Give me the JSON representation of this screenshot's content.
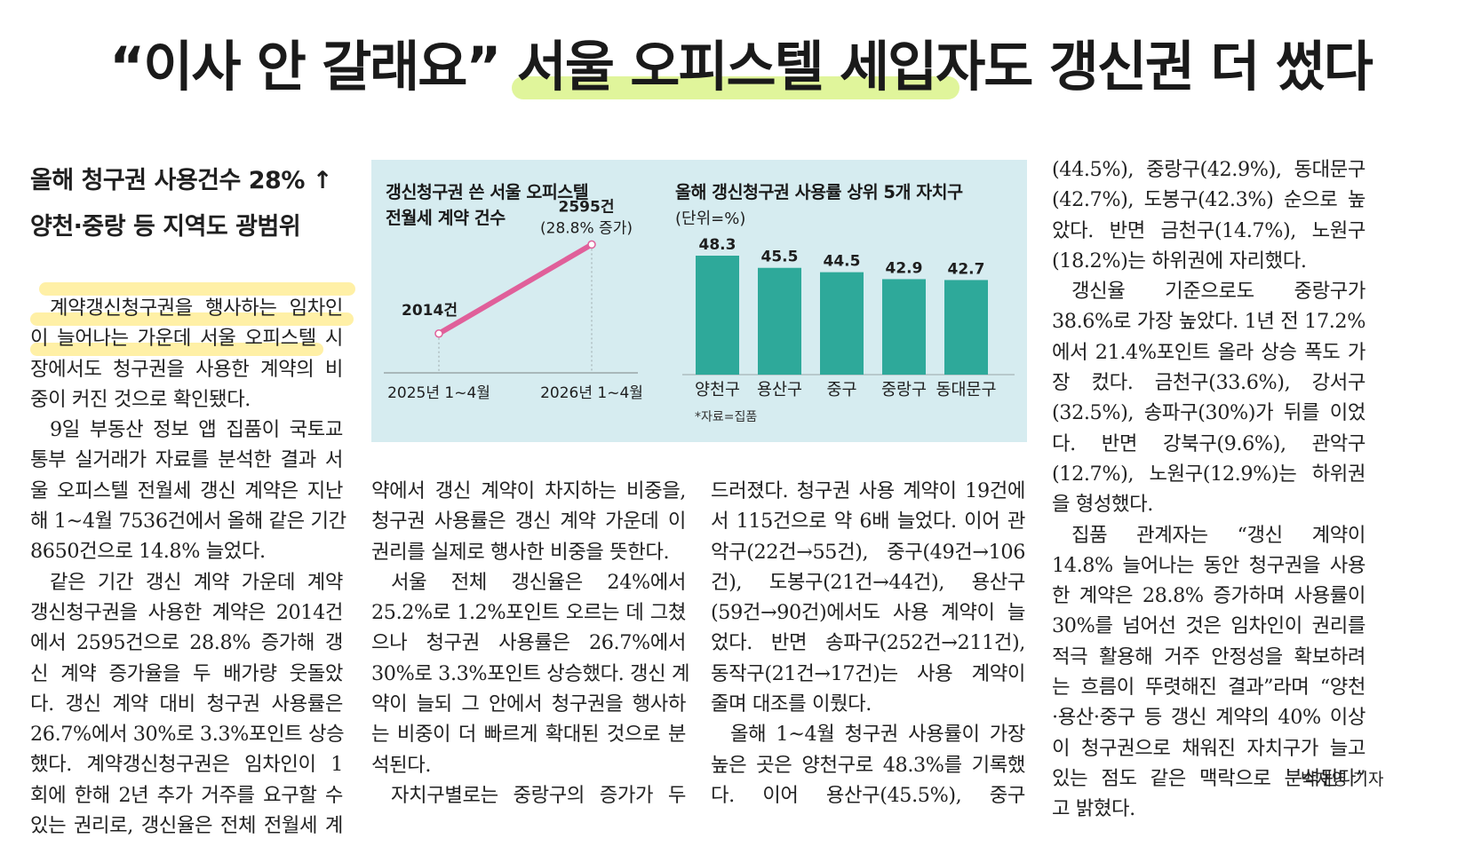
{
  "headline": "“이사 안 갈래요” 서울 오피스텔 세입자도 갱신권 더 썼다",
  "subhead": [
    "올해 청구권 사용건수 28% ↑",
    "양천·중랑 등 지역도 광범위"
  ],
  "col1": [
    "계약갱신청구권을 행사하는 임차인",
    "이 늘어나는 가운데 서울 오피스텔 시",
    "장에서도 청구권을 사용한 계약의 비",
    "중이 커진 것으로 확인됐다.",
    "9일 부동산 정보 앱 집품이 국토교",
    "통부 실거래가 자료를 분석한 결과 서",
    "울 오피스텔 전월세 갱신 계약은 지난",
    "해 1~4월 7536건에서 올해 같은 기간",
    "8650건으로 14.8% 늘었다.",
    "같은 기간 갱신 계약 가운데 계약",
    "갱신청구권을 사용한 계약은 2014건",
    "에서 2595건으로 28.8% 증가해 갱",
    "신 계약 증가율을 두 배가량 웃돌았",
    "다. 갱신 계약 대비 청구권 사용률은",
    "26.7%에서 30%로 3.3%포인트 상승",
    "했다. 계약갱신청구권은 임차인이 1",
    "회에 한해 2년 추가 거주를 요구할 수",
    "있는 권리로, 갱신율은 전체 전월세 계"
  ],
  "col2": [
    "약에서 갱신 계약이 차지하는 비중을,",
    "청구권 사용률은 갱신 계약 가운데 이",
    "권리를 실제로 행사한 비중을 뜻한다.",
    "서울 전체 갱신율은 24%에서",
    "25.2%로 1.2%포인트 오르는 데 그쳤",
    "으나 청구권 사용률은 26.7%에서",
    "30%로 3.3%포인트 상승했다. 갱신 계",
    "약이 늘되 그 안에서 청구권을 행사하",
    "는 비중이 더 빠르게 확대된 것으로 분",
    "석된다.",
    "자치구별로는 중랑구의 증가가 두"
  ],
  "col3": [
    "드러졌다. 청구권 사용 계약이 19건에",
    "서 115건으로 약 6배 늘었다. 이어 관",
    "악구(22건→55건), 중구(49건→106",
    "건), 도봉구(21건→44건), 용산구",
    "(59건→90건)에서도 사용 계약이 늘",
    "었다. 반면 송파구(252건→211건),",
    "동작구(21건→17건)는 사용 계약이",
    "줄며 대조를 이뤘다.",
    "올해 1~4월 청구권 사용률이 가장",
    "높은 곳은 양천구로 48.3%를 기록했",
    "다. 이어 용산구(45.5%), 중구"
  ],
  "col4": [
    "(44.5%), 중랑구(42.9%), 동대문구",
    "(42.7%), 도봉구(42.3%) 순으로 높",
    "았다. 반면 금천구(14.7%), 노원구",
    "(18.2%)는 하위권에 자리했다.",
    "갱신율 기준으로도 중랑구가",
    "38.6%로 가장 높았다. 1년 전 17.2%",
    "에서 21.4%포인트 올라 상승 폭도 가",
    "장 컸다. 금천구(33.6%), 강서구",
    "(32.5%), 송파구(30%)가 뒤를 이었",
    "다. 반면 강북구(9.6%), 관악구",
    "(12.7%), 노원구(12.9%)는 하위권",
    "을 형성했다.",
    "집품 관계자는 “갱신 계약이",
    "14.8% 늘어나는 동안 청구권을 사용",
    "한 계약은 28.8% 증가하며 사용률이",
    "30%를 넘어선 것은 임차인이 권리를",
    "적극 활용해 거주 안정성을 확보하려",
    "는 흐름이 뚜렷해진 결과”라며 “양천",
    "·용산·중구 등 갱신 계약의 40% 이상",
    "이 청구권으로 채워진 자치구가 늘고",
    "있는 점도 같은 맥락으로 분석된다”",
    "고 밝혔다."
  ],
  "byline": "박재영 기자",
  "infographic": {
    "left_title": [
      "갱신청구권 쓴 서울 오피스텔",
      "전월세 계약 건수"
    ],
    "right_title": "올해 갱신청구권 사용률 상위 5개 자치구",
    "unit": "(단위=%)",
    "source": "*자료=집품",
    "line_start_label": "2014건",
    "line_end_label": "2595건",
    "line_end_sub": "(28.8% 증가)",
    "line_x_labels": [
      "2025년 1~4월",
      "2026년 1~4월"
    ],
    "colors": {
      "background": "#d6ecf0",
      "line": "#e0609a",
      "bar": "#2ea99a"
    }
  },
  "chart_data": [
    {
      "type": "line",
      "title": "갱신청구권 쓴 서울 오피스텔 전월세 계약 건수",
      "x": [
        "2025년 1~4월",
        "2026년 1~4월"
      ],
      "series": [
        {
          "values": [
            2014,
            2595
          ]
        }
      ],
      "annotations": [
        "2014건",
        "2595건",
        "(28.8% 증가)"
      ]
    },
    {
      "type": "bar",
      "title": "올해 갱신청구권 사용률 상위 5개 자치구",
      "unit": "(단위=%)",
      "categories": [
        "양천구",
        "용산구",
        "중구",
        "중랑구",
        "동대문구"
      ],
      "values": [
        48.3,
        45.5,
        44.5,
        42.9,
        42.7
      ],
      "source": "*자료=집품"
    }
  ]
}
